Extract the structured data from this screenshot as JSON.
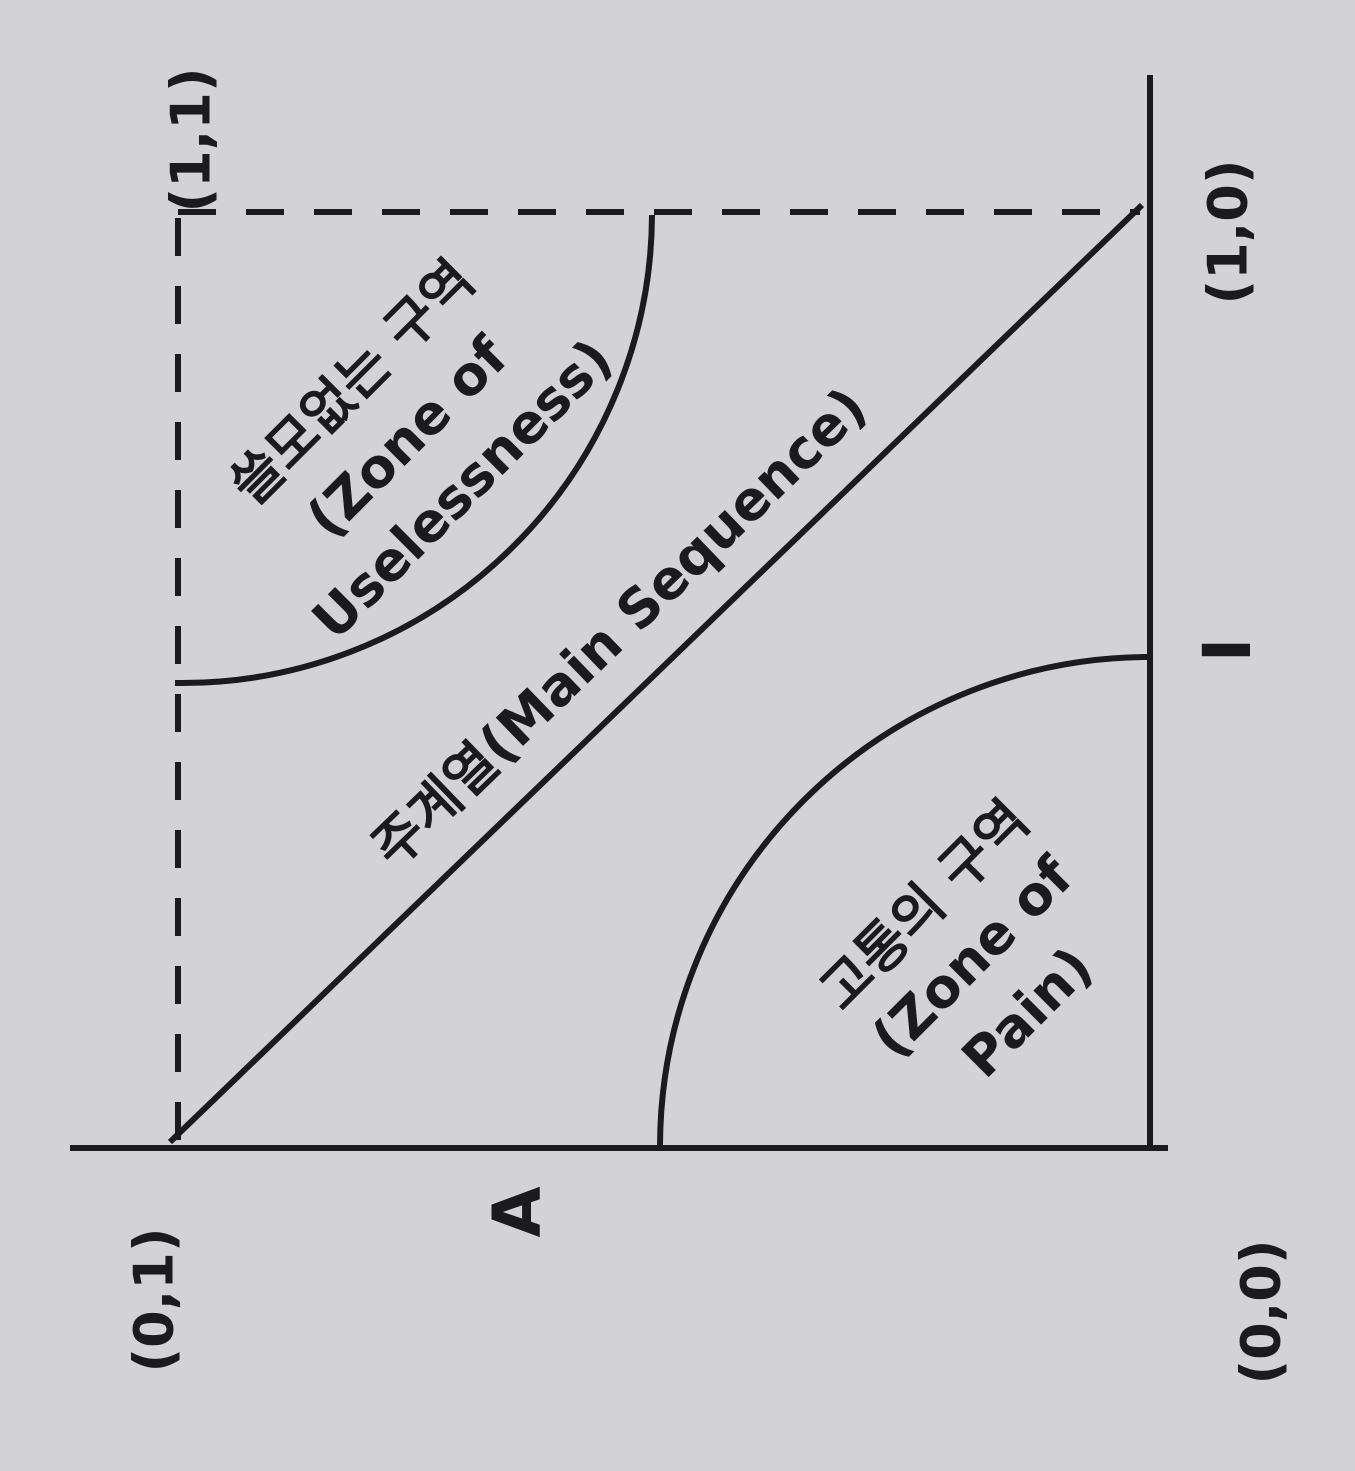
{
  "corners": {
    "top_left": "(1,1)",
    "top_right": "(1,0)",
    "bottom_left": "(0,1)",
    "bottom_right": "(0,0)"
  },
  "axes": {
    "horizontal": "A",
    "vertical": "I"
  },
  "zones": {
    "uselessness": [
      "쓸모없는 구역",
      "(Zone of",
      "Uselessness)"
    ],
    "main_sequence": "주계열(Main Sequence)",
    "pain": [
      "고통의 구역",
      "(Zone of",
      "Pain)"
    ]
  }
}
